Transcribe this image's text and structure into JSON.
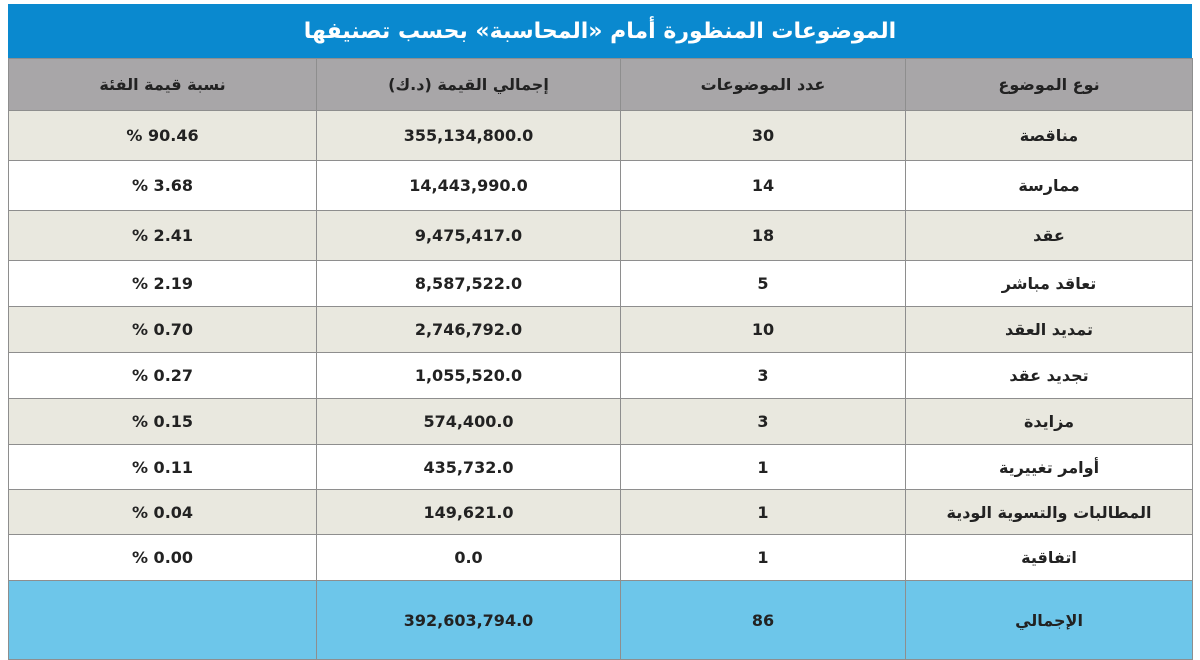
{
  "title": "الموضوعات المنظورة أمام «المحاسبة» بحسب تصنيفها",
  "columns": [
    "نوع الموضوع",
    "عدد الموضوعات",
    "إجمالي القيمة (د.ك)",
    "نسبة قيمة الفئة"
  ],
  "rows": [
    {
      "type": "مناقصة",
      "count": "30",
      "value": "355,134,800.0",
      "pct": "% 90.46"
    },
    {
      "type": "ممارسة",
      "count": "14",
      "value": "14,443,990.0",
      "pct": "% 3.68"
    },
    {
      "type": "عقد",
      "count": "18",
      "value": "9,475,417.0",
      "pct": "% 2.41"
    },
    {
      "type": "تعاقد مباشر",
      "count": "5",
      "value": "8,587,522.0",
      "pct": "% 2.19"
    },
    {
      "type": "تمديد العقد",
      "count": "10",
      "value": "2,746,792.0",
      "pct": "% 0.70"
    },
    {
      "type": "تجديد عقد",
      "count": "3",
      "value": "1,055,520.0",
      "pct": "% 0.27"
    },
    {
      "type": "مزايدة",
      "count": "3",
      "value": "574,400.0",
      "pct": "% 0.15"
    },
    {
      "type": "أوامر تغييرية",
      "count": "1",
      "value": "435,732.0",
      "pct": "% 0.11"
    },
    {
      "type": "المطالبات والتسوية الودية",
      "count": "1",
      "value": "149,621.0",
      "pct": "% 0.04"
    },
    {
      "type": "اتفاقية",
      "count": "1",
      "value": "0.0",
      "pct": "% 0.00"
    }
  ],
  "total": {
    "label": "الإجمالي",
    "count": "86",
    "value": "392,603,794.0",
    "pct": ""
  }
}
